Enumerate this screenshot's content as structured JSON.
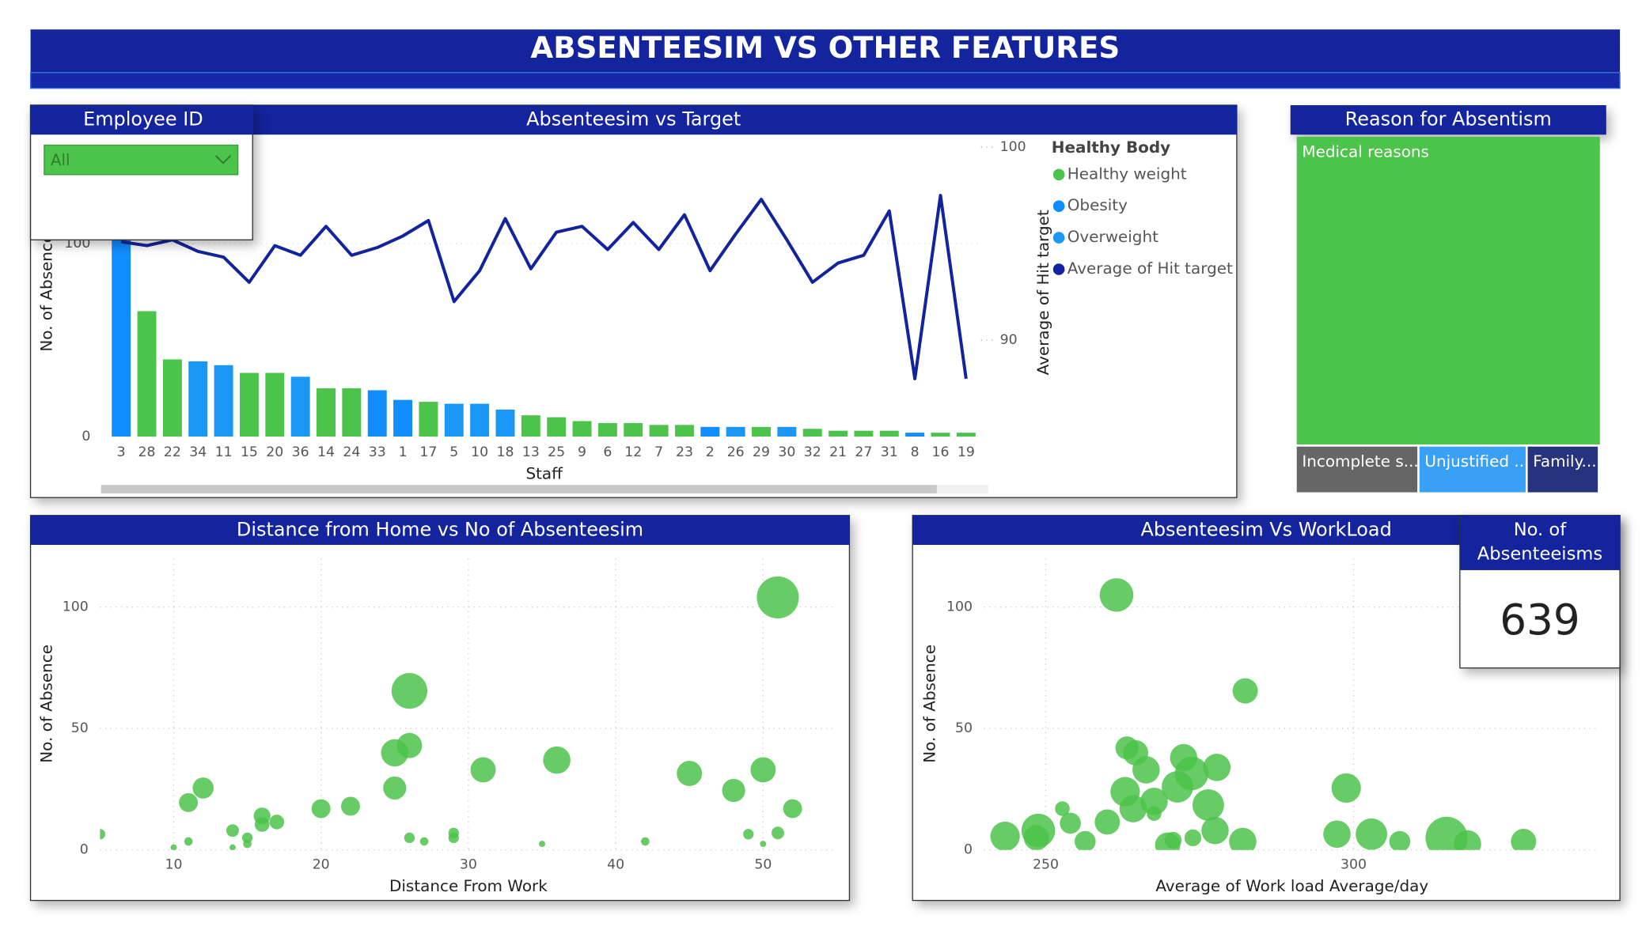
{
  "title": "ABSENTEESIM VS OTHER FEATURES",
  "slicer": {
    "title": "Employee ID",
    "value": "All"
  },
  "card": {
    "title": "No. of Absenteeisms",
    "value": 639
  },
  "chart_data": [
    {
      "type": "combo",
      "title": "Absenteesim vs Target",
      "x_label": "Staff",
      "y_label": "No. of Absence",
      "y2_label": "Average of Hit target",
      "legend_title": "Healthy Body",
      "categories": [
        "3",
        "28",
        "22",
        "34",
        "11",
        "15",
        "20",
        "36",
        "14",
        "24",
        "33",
        "1",
        "17",
        "5",
        "10",
        "18",
        "13",
        "25",
        "9",
        "6",
        "12",
        "7",
        "23",
        "2",
        "26",
        "29",
        "30",
        "32",
        "21",
        "27",
        "31",
        "8",
        "16",
        "19"
      ],
      "series": [
        {
          "name": "Healthy weight",
          "type": "bar",
          "color": "#4CC34A",
          "values": [
            null,
            65,
            40,
            null,
            null,
            33,
            33,
            null,
            25,
            25,
            null,
            null,
            18,
            null,
            null,
            null,
            11,
            10,
            8,
            7,
            7,
            6,
            6,
            null,
            null,
            5,
            null,
            4,
            3,
            3,
            3,
            null,
            2,
            2
          ]
        },
        {
          "name": "Obesity",
          "type": "bar",
          "color": "#118DFF",
          "values": [
            113,
            null,
            null,
            null,
            null,
            null,
            null,
            null,
            null,
            null,
            24,
            19,
            null,
            null,
            null,
            null,
            null,
            null,
            null,
            null,
            null,
            null,
            null,
            5,
            null,
            null,
            null,
            null,
            null,
            null,
            null,
            2,
            null,
            null
          ]
        },
        {
          "name": "Overweight",
          "type": "bar",
          "color": "#1A96F5",
          "values": [
            null,
            null,
            null,
            39,
            37,
            null,
            null,
            31,
            null,
            null,
            null,
            null,
            null,
            17,
            17,
            14,
            null,
            null,
            null,
            null,
            null,
            null,
            null,
            null,
            5,
            null,
            5,
            null,
            null,
            null,
            null,
            null,
            null,
            null
          ]
        },
        {
          "name": "Average of Hit target",
          "type": "line",
          "axis": "y2",
          "color": "#12239E",
          "values": [
            95.1,
            94.9,
            95.2,
            94.6,
            94.3,
            93.0,
            94.9,
            94.4,
            95.9,
            94.4,
            94.8,
            95.4,
            96.2,
            92.0,
            93.6,
            96.3,
            93.7,
            95.6,
            95.9,
            94.7,
            96.1,
            94.7,
            96.5,
            93.6,
            95.5,
            97.3,
            95.2,
            93.0,
            94.0,
            94.4,
            96.7,
            88.0,
            97.5,
            88.0
          ]
        }
      ],
      "ylim": [
        0,
        150
      ],
      "yticks": [
        0,
        100
      ],
      "y2lim": [
        85,
        100
      ],
      "y2ticks": [
        90,
        100
      ],
      "grid": true
    },
    {
      "type": "treemap",
      "title": "Reason for Absentism",
      "categories": [
        "Medical reasons",
        "Incomplete s...",
        "Unjustified ...",
        "Family..."
      ],
      "values": [
        555,
        34,
        30,
        20
      ],
      "colors": [
        "#4CC34A",
        "#666666",
        "#3AA0F5",
        "#27337F"
      ]
    },
    {
      "type": "scatter",
      "title": "Distance from Home vs No of Absenteesim",
      "x_label": "Distance From Work",
      "y_label": "No. of Absence",
      "color": "#4CC34A",
      "x": [
        5,
        10,
        11,
        11,
        12,
        14,
        14,
        15,
        15,
        16,
        16,
        17,
        20,
        22,
        25,
        25,
        26,
        26,
        26,
        27,
        29,
        29,
        31,
        35,
        36,
        42,
        45,
        48,
        49,
        50,
        50,
        51,
        51,
        52
      ],
      "values": [
        6.5,
        1,
        3.5,
        19.5,
        25.5,
        8,
        1,
        5,
        2.5,
        14,
        10.5,
        11.5,
        17,
        18,
        25.5,
        40,
        65.5,
        43,
        5,
        3.5,
        7,
        5,
        33,
        2.5,
        37,
        3.5,
        31.5,
        24.5,
        6.5,
        2.5,
        33,
        104,
        7,
        17
      ],
      "sizes": [
        5,
        3,
        4,
        9,
        10,
        6,
        3,
        5,
        4,
        8,
        7,
        7,
        9,
        9,
        11,
        13,
        17,
        12,
        5,
        4,
        5,
        5,
        12,
        3,
        13,
        4,
        12,
        11,
        5,
        3,
        12,
        20,
        6,
        9
      ],
      "xlim": [
        5,
        55
      ],
      "xticks": [
        10,
        20,
        30,
        40,
        50
      ],
      "ylim": [
        0,
        120
      ],
      "yticks": [
        0,
        50,
        100
      ],
      "grid": true
    },
    {
      "type": "scatter",
      "title": "Absenteesim Vs WorkLoad",
      "x_label": "Average of Work load Average/day",
      "y_label": "No. of Absence",
      "color": "#4CC34A",
      "x": [
        243.4,
        248.8,
        248.5,
        252.7,
        254,
        256.4,
        260,
        261.5,
        262.9,
        263.2,
        264.2,
        264.6,
        266.3,
        267.6,
        267.6,
        269.8,
        270.7,
        271.4,
        272.4,
        273.7,
        273.9,
        276.4,
        277.5,
        277.8,
        282,
        282.4,
        297.3,
        298.8,
        302.9,
        307.5,
        315.1,
        318.5,
        327.6
      ],
      "values": [
        5.6,
        8,
        5,
        17,
        11,
        3.5,
        11.5,
        105,
        24,
        42,
        17,
        40,
        33,
        15,
        20,
        2,
        4,
        26,
        38,
        31.5,
        5,
        18.5,
        8,
        34,
        3.5,
        65.5,
        6.5,
        25.5,
        6.5,
        3.5,
        5,
        2.5,
        3.5
      ],
      "sizes": [
        14,
        16,
        12,
        7,
        10,
        10,
        12,
        16,
        14,
        11,
        13,
        12,
        13,
        7,
        13,
        12,
        8,
        15,
        13,
        16,
        8,
        15,
        13,
        13,
        13,
        12,
        13,
        14,
        15,
        10,
        20,
        13,
        12
      ],
      "xlim": [
        240,
        340
      ],
      "xticks": [
        250,
        300
      ],
      "ylim": [
        0,
        120
      ],
      "yticks": [
        0,
        50,
        100
      ],
      "grid": true
    }
  ]
}
